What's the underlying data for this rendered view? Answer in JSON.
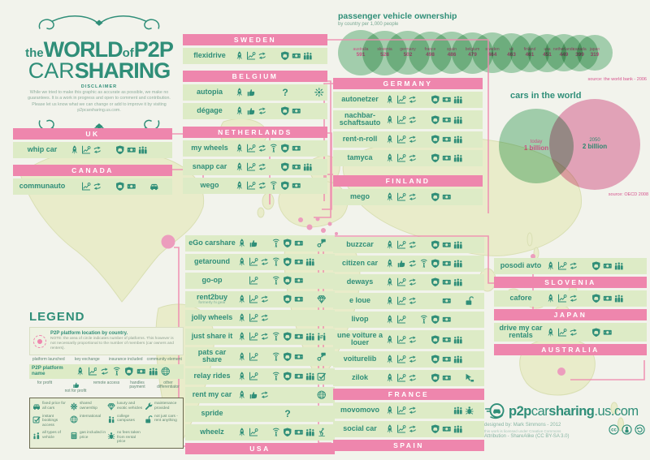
{
  "title": {
    "the": "the",
    "world": "WORLD",
    "of": "of",
    "p2p": "P2P",
    "car": "CAR",
    "sharing": "SHARING"
  },
  "disclaimer": {
    "label": "DISCLAIMER",
    "text": "While we tried to make this graphic as accurate as possible, we make no guarantees. It is a work in progress and open to comment and contribution. Please let us know what we can change or add to improve it by visiting p2pcarsharing.us.com."
  },
  "ownership": {
    "title": "passenger vehicle ownership",
    "subtitle": "by country per 1,000 people",
    "source": "source: the world bank - 2006",
    "countries": [
      {
        "name": "australia",
        "value": "591"
      },
      {
        "name": "slovenia",
        "value": "528"
      },
      {
        "name": "germany",
        "value": "502"
      },
      {
        "name": "france",
        "value": "498"
      },
      {
        "name": "spain",
        "value": "486"
      },
      {
        "name": "belgium",
        "value": "479"
      },
      {
        "name": "sweden",
        "value": "464"
      },
      {
        "name": "uk",
        "value": "463"
      },
      {
        "name": "finland",
        "value": "461"
      },
      {
        "name": "usa",
        "value": "451"
      },
      {
        "name": "netherlands",
        "value": "449"
      },
      {
        "name": "canada",
        "value": "399"
      },
      {
        "name": "japan",
        "value": "319"
      }
    ]
  },
  "cars_world": {
    "title": "cars in the world",
    "today_label": "today",
    "today_value": "1 billion",
    "future_label": "2050",
    "future_value": "2 billion",
    "source": "source: OECD 2008"
  },
  "columns": [
    {
      "id": "uk-canada",
      "items": [
        {
          "t": "h",
          "label": "UK"
        },
        {
          "t": "r",
          "name": "whip car",
          "icons": [
            "rocket",
            "profit",
            "exchange",
            "",
            "shield",
            "payment",
            "community",
            ""
          ]
        },
        {
          "t": "s",
          "h": 5
        },
        {
          "t": "h",
          "label": "CANADA"
        },
        {
          "t": "r",
          "name": "communauto",
          "icons": [
            "",
            "profit",
            "exchange",
            "",
            "shield",
            "payment",
            "",
            "car"
          ]
        }
      ]
    },
    {
      "id": "north-europe",
      "items": [
        {
          "t": "h",
          "label": "SWEDEN"
        },
        {
          "t": "r",
          "name": "flexidrive",
          "icons": [
            "rocket",
            "profit",
            "exchange",
            "",
            "shield",
            "payment",
            "community",
            ""
          ]
        },
        {
          "t": "s",
          "h": 5
        },
        {
          "t": "h",
          "label": "BELGIUM"
        },
        {
          "t": "r",
          "name": "autopia",
          "icons": [
            "rocket",
            "thumb",
            "",
            "",
            "question",
            "",
            "",
            "sun"
          ]
        },
        {
          "t": "r",
          "name": "dégage",
          "icons": [
            "rocket",
            "thumb",
            "exchange",
            "",
            "shield",
            "payment",
            "",
            ""
          ]
        },
        {
          "t": "s",
          "h": 6
        },
        {
          "t": "h",
          "label": "NETHERLANDS"
        },
        {
          "t": "r",
          "name": "my wheels",
          "icons": [
            "rocket",
            "profit",
            "exchange",
            "wifi",
            "shield",
            "payment",
            "",
            ""
          ]
        },
        {
          "t": "r",
          "name": "snapp car",
          "icons": [
            "rocket",
            "profit",
            "exchange",
            "",
            "shield",
            "payment",
            "community",
            ""
          ]
        },
        {
          "t": "r",
          "name": "wego",
          "icons": [
            "rocket",
            "profit",
            "exchange",
            "wifi",
            "shield",
            "payment",
            "",
            ""
          ]
        }
      ]
    },
    {
      "id": "germany-finland",
      "items": [
        {
          "t": "h",
          "label": "GERMANY"
        },
        {
          "t": "r",
          "name": "autonetzer",
          "icons": [
            "rocket",
            "profit",
            "exchange",
            "",
            "shield",
            "payment",
            "community",
            ""
          ]
        },
        {
          "t": "r",
          "name": "nachbar-schaftsauto",
          "icons": [
            "rocket",
            "profit",
            "exchange",
            "",
            "shield",
            "payment",
            "community",
            ""
          ]
        },
        {
          "t": "r",
          "name": "rent-n-roll",
          "icons": [
            "rocket",
            "profit",
            "exchange",
            "",
            "shield",
            "payment",
            "community",
            ""
          ]
        },
        {
          "t": "r",
          "name": "tamyca",
          "icons": [
            "rocket",
            "profit",
            "exchange",
            "",
            "shield",
            "payment",
            "community",
            ""
          ]
        },
        {
          "t": "s",
          "h": 8
        },
        {
          "t": "h",
          "label": "FINLAND"
        },
        {
          "t": "r",
          "name": "mego",
          "icons": [
            "rocket",
            "profit",
            "exchange",
            "",
            "shield",
            "payment",
            "",
            ""
          ]
        }
      ]
    },
    {
      "id": "usa",
      "items": [
        {
          "t": "r",
          "name": "eGo carshare",
          "icons": [
            "rocket",
            "thumb",
            "",
            "wifi",
            "shield",
            "payment",
            "",
            "keycard"
          ]
        },
        {
          "t": "r",
          "name": "getaround",
          "icons": [
            "rocket",
            "profit",
            "exchange",
            "wifi",
            "shield",
            "payment",
            "community",
            ""
          ]
        },
        {
          "t": "r",
          "name": "go-op",
          "icons": [
            "",
            "profit",
            "",
            "wifi",
            "shield",
            "payment",
            "",
            ""
          ]
        },
        {
          "t": "r",
          "name": "rent2buy",
          "sub": "formerly hi gear",
          "icons": [
            "rocket",
            "profit",
            "exchange",
            "",
            "shield",
            "payment",
            "",
            "diamond"
          ]
        },
        {
          "t": "r",
          "name": "jolly wheels",
          "icons": [
            "rocket",
            "profit",
            "exchange",
            "",
            "",
            "",
            "",
            ""
          ]
        },
        {
          "t": "r",
          "name": "just share it",
          "icons": [
            "rocket",
            "profit",
            "exchange",
            "wifi",
            "shield",
            "payment",
            "community",
            "parrows"
          ]
        },
        {
          "t": "r",
          "name": "pats car share",
          "icons": [
            "rocket",
            "profit",
            "",
            "wifi",
            "shield",
            "payment",
            "",
            "keycard"
          ]
        },
        {
          "t": "r",
          "name": "relay rides",
          "icons": [
            "rocket",
            "profit",
            "",
            "wifi",
            "shield",
            "payment",
            "community",
            "checkbox"
          ]
        },
        {
          "t": "r",
          "name": "rent my car",
          "icons": [
            "rocket",
            "thumb",
            "exchange",
            "",
            "",
            "",
            "",
            "globe"
          ]
        },
        {
          "t": "r",
          "name": "spride",
          "icons": [
            "",
            "",
            "",
            "",
            "question",
            "",
            "",
            ""
          ]
        },
        {
          "t": "r",
          "name": "wheelz",
          "icons": [
            "rocket",
            "profit",
            "",
            "wifi",
            "shield",
            "payment",
            "community",
            "skier"
          ]
        },
        {
          "t": "h",
          "label": "USA"
        }
      ]
    },
    {
      "id": "france-spain",
      "items": [
        {
          "t": "r",
          "name": "buzzcar",
          "icons": [
            "rocket",
            "profit",
            "exchange",
            "",
            "shield",
            "payment",
            "community",
            ""
          ]
        },
        {
          "t": "r",
          "name": "citizen car",
          "icons": [
            "rocket",
            "thumb",
            "exchange",
            "wifi",
            "shield",
            "payment",
            "community",
            ""
          ]
        },
        {
          "t": "r",
          "name": "deways",
          "icons": [
            "rocket",
            "profit",
            "exchange",
            "",
            "shield",
            "payment",
            "community",
            ""
          ]
        },
        {
          "t": "r",
          "name": "e loue",
          "icons": [
            "rocket",
            "profit",
            "exchange",
            "",
            "",
            "payment",
            "",
            "padlock"
          ]
        },
        {
          "t": "r",
          "name": "livop",
          "icons": [
            "rocket",
            "profit",
            "",
            "wifi",
            "shield",
            "payment",
            "",
            ""
          ]
        },
        {
          "t": "r",
          "name": "une voiture a louer",
          "icons": [
            "rocket",
            "profit",
            "exchange",
            "",
            "shield",
            "payment",
            "community",
            ""
          ]
        },
        {
          "t": "r",
          "name": "voiturelib",
          "icons": [
            "rocket",
            "profit",
            "exchange",
            "",
            "shield",
            "payment",
            "community",
            ""
          ]
        },
        {
          "t": "r",
          "name": "zilok",
          "icons": [
            "rocket",
            "profit",
            "exchange",
            "",
            "shield",
            "payment",
            "",
            "cursor"
          ]
        },
        {
          "t": "h",
          "label": "FRANCE"
        },
        {
          "t": "r",
          "name": "movomovo",
          "icons": [
            "rocket",
            "profit",
            "exchange",
            "",
            "",
            "",
            "community",
            "bug"
          ]
        },
        {
          "t": "r",
          "name": "social car",
          "icons": [
            "rocket",
            "profit",
            "exchange",
            "",
            "shield",
            "payment",
            "community",
            ""
          ]
        },
        {
          "t": "h",
          "label": "SPAIN"
        }
      ]
    },
    {
      "id": "pacific",
      "items": [
        {
          "t": "r",
          "name": "posodi avto",
          "icons": [
            "rocket",
            "profit",
            "exchange",
            "",
            "shield",
            "payment",
            "community",
            ""
          ]
        },
        {
          "t": "h",
          "label": "SLOVENIA"
        },
        {
          "t": "r",
          "name": "cafore",
          "icons": [
            "rocket",
            "profit",
            "exchange",
            "",
            "shield",
            "payment",
            "community",
            ""
          ]
        },
        {
          "t": "h",
          "label": "JAPAN"
        },
        {
          "t": "r",
          "name": "drive my car rentals",
          "icons": [
            "rocket",
            "profit",
            "exchange",
            "",
            "shield",
            "payment",
            "",
            ""
          ]
        },
        {
          "t": "h",
          "label": "AUSTRALIA"
        }
      ]
    }
  ],
  "legend": {
    "title": "LEGEND",
    "note_title": "P2P platform location by country.",
    "note_text": "NOTE: the area of circle indicates number of platforms. This however is not necessarily proportional to the number of members (car owners and renters).",
    "row_label": "P2P platform name",
    "icon_row": [
      "rocket",
      "profit",
      "exchange",
      "wifi",
      "shield",
      "payment",
      "community",
      "globe"
    ],
    "top_labels": [
      "platform launched",
      "key exchange",
      "insurance included",
      "community element"
    ],
    "bottom_labels": [
      {
        "icon": "",
        "label": "for profit"
      },
      {
        "icon": "thumb",
        "label": "not for profit"
      },
      {
        "icon": "",
        "label": "remote access"
      },
      {
        "icon": "",
        "label": "handles payment"
      },
      {
        "icon": "",
        "label": "other differentiator"
      }
    ],
    "extras": [
      {
        "icon": "car",
        "label": "fixed price for all cars"
      },
      {
        "icon": "flower",
        "label": "shared ownership"
      },
      {
        "icon": "diamond",
        "label": "luxury and exotic vehicles"
      },
      {
        "icon": "wrench",
        "label": "maintenance provided"
      },
      {
        "icon": "checkbox",
        "label": "instant bookings access"
      },
      {
        "icon": "globe",
        "label": "international"
      },
      {
        "icon": "couple",
        "label": "college campuses"
      },
      {
        "icon": "padlock",
        "label": "not just cars - rent anything"
      },
      {
        "icon": "types",
        "label": "all types of vehicle"
      },
      {
        "icon": "calculator",
        "label": "gas included in price"
      },
      {
        "icon": "bug",
        "label": "no fees taken from rental price"
      }
    ]
  },
  "footer": {
    "site_b1": "p2p",
    "site_r1": "car",
    "site_b2": "sharing",
    "site_r2": ".us.com",
    "designed": "designed by: Mark Simmons - 2012",
    "license1": "this work is licensed under Creative Commons",
    "license2": "Attribution - ShareAlike (CC BY-SA 3.0)"
  }
}
